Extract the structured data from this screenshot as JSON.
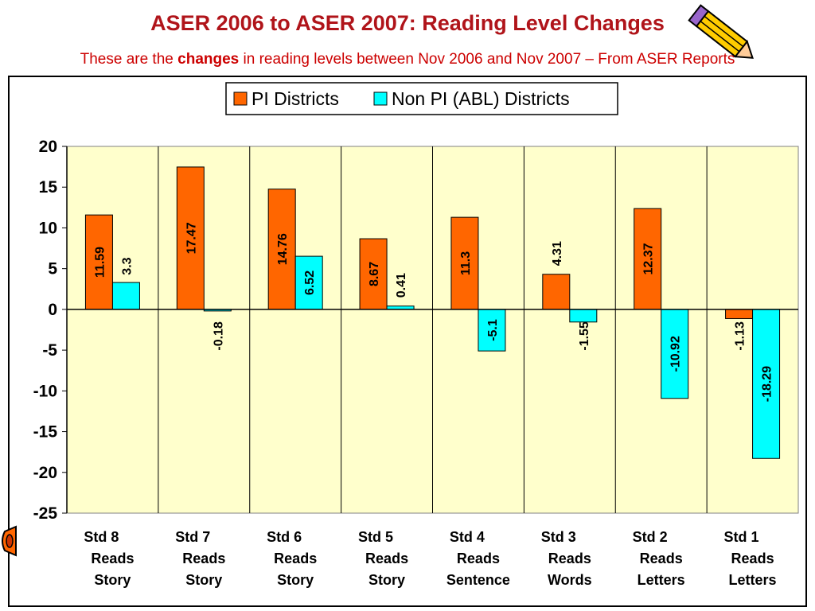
{
  "slide": {
    "title": "ASER 2006 to ASER 2007:  Reading Level Changes",
    "subtitle_pre": "These are the ",
    "subtitle_bold": "changes",
    "subtitle_post": " in reading levels between Nov 2006 and Nov 2007 – From ASER Reports"
  },
  "colors": {
    "title": "#b0141a",
    "subtitle": "#cc0000",
    "plot_bg": "#ffffcc",
    "series_pi": "#ff6600",
    "series_nonpi": "#00ffff"
  },
  "icons": [
    "pencil-icon",
    "crayon-icon"
  ],
  "chart_data": {
    "type": "bar",
    "categories": [
      [
        "Std 8",
        "Reads",
        "Story"
      ],
      [
        "Std 7",
        "Reads",
        "Story"
      ],
      [
        "Std 6",
        "Reads",
        "Story"
      ],
      [
        "Std 5",
        "Reads",
        "Story"
      ],
      [
        "Std 4",
        "Reads",
        "Sentence"
      ],
      [
        "Std 3",
        "Reads",
        "Words"
      ],
      [
        "Std 2",
        "Reads",
        "Letters"
      ],
      [
        "Std 1",
        "Reads",
        "Letters"
      ]
    ],
    "series": [
      {
        "name": "PI Districts",
        "color": "#ff6600",
        "values": [
          11.59,
          17.47,
          14.76,
          8.67,
          11.3,
          4.31,
          12.37,
          -1.13
        ],
        "labels": [
          "11.59",
          "17.47",
          "14.76",
          "8.67",
          "11.3",
          "4.31",
          "12.37",
          "-1.13"
        ]
      },
      {
        "name": "Non PI (ABL) Districts",
        "color": "#00ffff",
        "values": [
          3.3,
          -0.18,
          6.52,
          0.41,
          -5.1,
          -1.55,
          -10.92,
          -18.29
        ],
        "labels": [
          "3.3",
          "-0.18",
          "6.52",
          "0.41",
          "-5.1",
          "-1.55",
          "-10.92",
          "-18.29"
        ]
      }
    ],
    "yticks": [
      "20",
      "15",
      "10",
      "5",
      "0",
      "-5",
      "-10",
      "-15",
      "-20",
      "-25"
    ],
    "ylim": [
      -25,
      20
    ],
    "grid": "vertical category separators",
    "legend": "top-center"
  }
}
